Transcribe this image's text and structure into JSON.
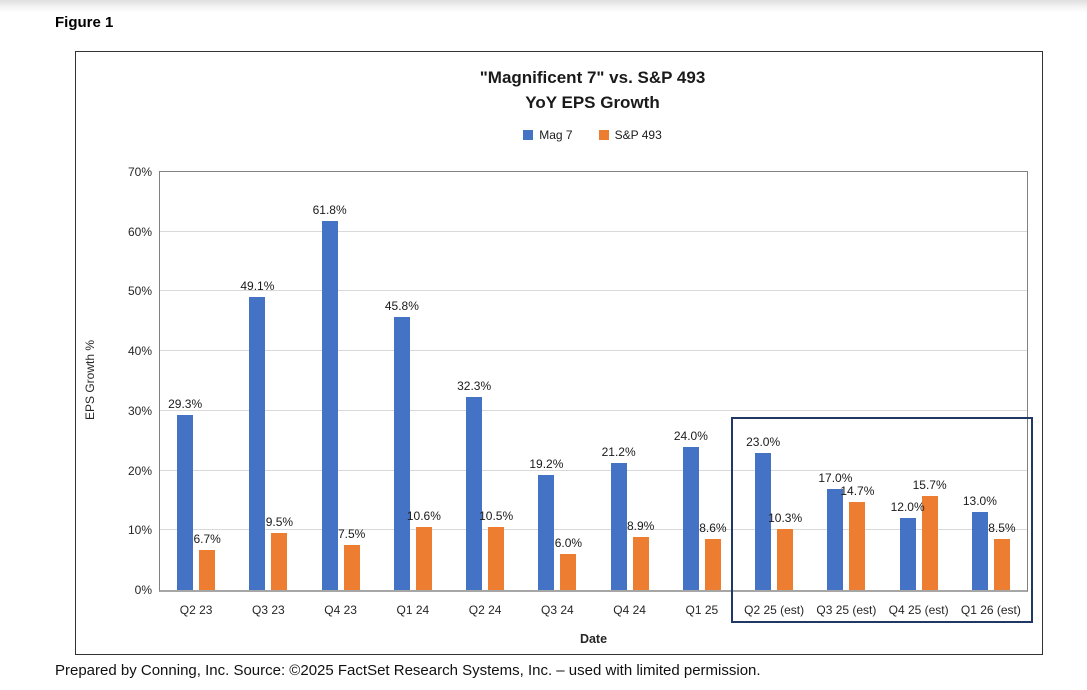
{
  "figure_label": "Figure 1",
  "caption": "Prepared by Conning, Inc. Source: ©2025 FactSet Research Systems, Inc. – used with limited permission.",
  "chart_data": {
    "type": "bar",
    "title": "\"Magnificent 7\" vs. S&P 493",
    "subtitle": "YoY EPS Growth",
    "xlabel": "Date",
    "ylabel": "EPS Growth %",
    "ylim": [
      0,
      70
    ],
    "ytick_step": 10,
    "ytick_labels": [
      "0%",
      "10%",
      "20%",
      "30%",
      "40%",
      "50%",
      "60%",
      "70%"
    ],
    "grid": true,
    "legend_position": "top-center",
    "categories": [
      "Q2 23",
      "Q3 23",
      "Q4 23",
      "Q1 24",
      "Q2 24",
      "Q3 24",
      "Q4 24",
      "Q1 25",
      "Q2 25 (est)",
      "Q3 25 (est)",
      "Q4 25 (est)",
      "Q1 26 (est)"
    ],
    "series": [
      {
        "name": "Mag 7",
        "color": "#4472C4",
        "values": [
          29.3,
          49.1,
          61.8,
          45.8,
          32.3,
          19.2,
          21.2,
          24.0,
          23.0,
          17.0,
          12.0,
          13.0
        ],
        "labels": [
          "29.3%",
          "49.1%",
          "61.8%",
          "45.8%",
          "32.3%",
          "19.2%",
          "21.2%",
          "24.0%",
          "23.0%",
          "17.0%",
          "12.0%",
          "13.0%"
        ]
      },
      {
        "name": "S&P 493",
        "color": "#ED7D31",
        "values": [
          6.7,
          9.5,
          7.5,
          10.6,
          10.5,
          6.0,
          8.9,
          8.6,
          10.3,
          14.7,
          15.7,
          8.5
        ],
        "labels": [
          "6.7%",
          "9.5%",
          "7.5%",
          "10.6%",
          "10.5%",
          "6.0%",
          "8.9%",
          "8.6%",
          "10.3%",
          "14.7%",
          "15.7%",
          "8.5%"
        ]
      }
    ],
    "estimate_box": {
      "start_category": "Q2 25 (est)",
      "end_category": "Q1 26 (est)",
      "color": "#1F3864"
    }
  }
}
